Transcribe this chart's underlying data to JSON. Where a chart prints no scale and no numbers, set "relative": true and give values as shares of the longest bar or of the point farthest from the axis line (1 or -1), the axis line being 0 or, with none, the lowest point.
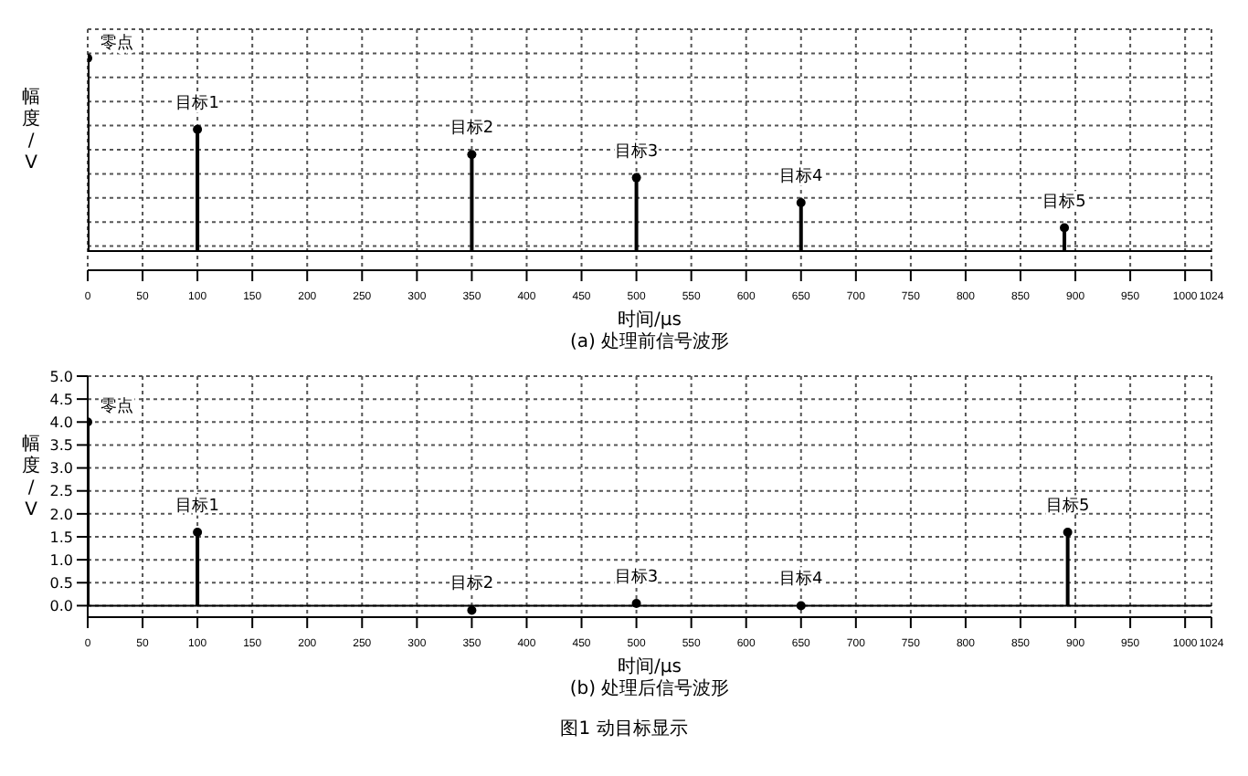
{
  "chart_data": [
    {
      "type": "lollipop",
      "title": "(a) 处理前信号波形",
      "xlabel": "时间/μs",
      "ylabel": "幅度/V",
      "relative": true,
      "xlim": [
        0,
        1024
      ],
      "xticks": [
        0,
        50,
        100,
        150,
        200,
        250,
        300,
        350,
        400,
        450,
        500,
        550,
        600,
        650,
        700,
        750,
        800,
        850,
        900,
        950,
        1000,
        1024
      ],
      "tick_labels": "x",
      "grid": true,
      "series": [
        {
          "color": "#000000",
          "marker": "circle",
          "x": [
            0,
            100,
            350,
            500,
            650,
            890
          ],
          "values": [
            1,
            0.63,
            0.5,
            0.38,
            0.25,
            0.12
          ]
        },
        {
          "type": "line",
          "color": "#000000",
          "marker": "none",
          "x": [
            0,
            1024
          ],
          "values": [
            0,
            0
          ]
        }
      ],
      "annotations": [
        {
          "text": "零点",
          "x": 0,
          "y": 1
        },
        {
          "text": "目标1",
          "x": 100,
          "y": 0.63
        },
        {
          "text": "目标2",
          "x": 350,
          "y": 0.5
        },
        {
          "text": "目标3",
          "x": 500,
          "y": 0.38
        },
        {
          "text": "目标4",
          "x": 650,
          "y": 0.25
        },
        {
          "text": "目标5",
          "x": 890,
          "y": 0.12
        }
      ]
    },
    {
      "type": "lollipop",
      "title": "(b) 处理后信号波形",
      "xlabel": "时间/μs",
      "ylabel": "幅度/V",
      "xlim": [
        0,
        1024
      ],
      "xticks": [
        0,
        50,
        100,
        150,
        200,
        250,
        300,
        350,
        400,
        450,
        500,
        550,
        600,
        650,
        700,
        750,
        800,
        850,
        900,
        950,
        1000,
        1024
      ],
      "ylim": [
        -0.25,
        5.0
      ],
      "yticks": [
        {
          "value": 0,
          "label": "0.0"
        },
        0.5,
        {
          "value": 1,
          "label": "1.0"
        },
        1.5,
        {
          "value": 2,
          "label": "2.0"
        },
        2.5,
        {
          "value": 3,
          "label": "3.0"
        },
        3.5,
        {
          "value": 4,
          "label": "4.0"
        },
        4.5,
        {
          "value": 5,
          "label": "5.0"
        }
      ],
      "grid": true,
      "series": [
        {
          "color": "#000000",
          "marker": "circle",
          "x": [
            0,
            100,
            350,
            500,
            650,
            893
          ],
          "values": [
            4.0,
            1.6,
            -0.1,
            0.05,
            0,
            1.6
          ]
        },
        {
          "type": "line",
          "color": "#000000",
          "marker": "none",
          "x": [
            0,
            1024
          ],
          "values": [
            0,
            0
          ]
        }
      ],
      "annotations": [
        {
          "text": "零点",
          "x": 0,
          "y": 4.0
        },
        {
          "text": "目标1",
          "x": 100,
          "y": 1.6
        },
        {
          "text": "目标2",
          "x": 350,
          "y": -0.1
        },
        {
          "text": "目标3",
          "x": 500,
          "y": 0.05
        },
        {
          "text": "目标4",
          "x": 650,
          "y": 0
        },
        {
          "text": "目标5",
          "x": 893,
          "y": 1.6
        },
        "图1  动目标显示"
      ]
    }
  ]
}
